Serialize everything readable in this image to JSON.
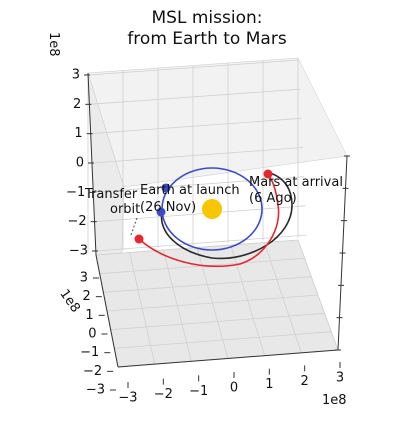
{
  "chart_data": {
    "type": "3d-line",
    "title_lines": [
      "MSL mission:",
      "from Earth to Mars"
    ],
    "axes": {
      "x": {
        "ticks": [
          "−3",
          "−2",
          "−1",
          "0",
          "1",
          "2",
          "3"
        ],
        "offset_label": "1e8",
        "lim": [
          -3,
          3
        ]
      },
      "y": {
        "ticks": [
          "−3",
          "−2",
          "−1",
          "0",
          "1",
          "2",
          "3"
        ],
        "offset_label": "1e8",
        "lim": [
          -3,
          3
        ]
      },
      "z": {
        "ticks": [
          "−3",
          "−2",
          "−1",
          "0",
          "1",
          "2",
          "3"
        ],
        "offset_label": "1e8",
        "lim": [
          -3,
          3
        ]
      }
    },
    "grid": true,
    "units_scale": "1e8",
    "colors": {
      "earth": "#3b4cc8",
      "mars": "#2b2b2b",
      "transfer": "#e8262f",
      "sun": "#f7c600"
    },
    "annotations": {
      "transfer": [
        "Transfer",
        "orbit"
      ],
      "earth_launch": [
        "Earth at launch",
        "(26 Nov)"
      ],
      "mars_arrival": [
        "Mars at arrival",
        "(6 Ago)"
      ]
    }
  }
}
